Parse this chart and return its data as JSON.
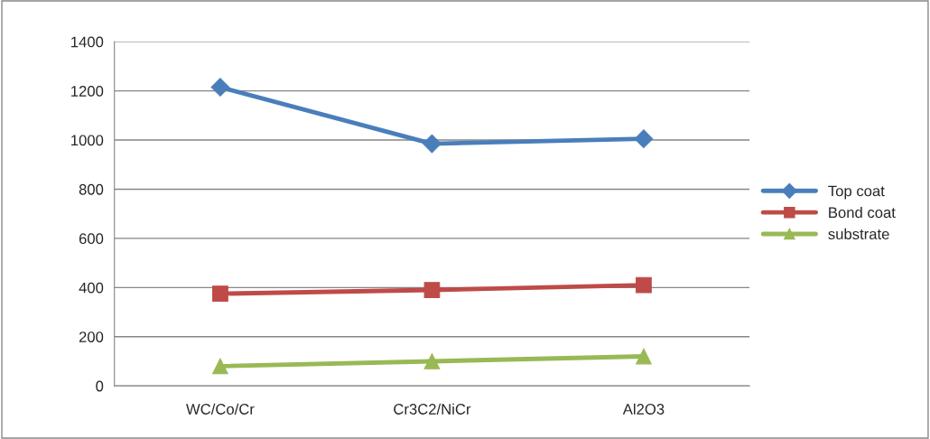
{
  "chart_data": {
    "type": "line",
    "categories": [
      "WC/Co/Cr",
      "Cr3C2/NiCr",
      "Al2O3"
    ],
    "series": [
      {
        "name": "Top coat",
        "color": "#4a7ebb",
        "marker": "diamond",
        "values": [
          1215,
          985,
          1005
        ]
      },
      {
        "name": "Bond coat",
        "color": "#be4b48",
        "marker": "square",
        "values": [
          375,
          390,
          410
        ]
      },
      {
        "name": "substrate",
        "color": "#98b954",
        "marker": "triangle",
        "values": [
          80,
          100,
          120
        ]
      }
    ],
    "ylim": [
      0,
      1400
    ],
    "yticks": [
      0,
      200,
      400,
      600,
      800,
      1000,
      1200,
      1400
    ],
    "grid": "y",
    "legend": "right",
    "line_style": "solid"
  }
}
